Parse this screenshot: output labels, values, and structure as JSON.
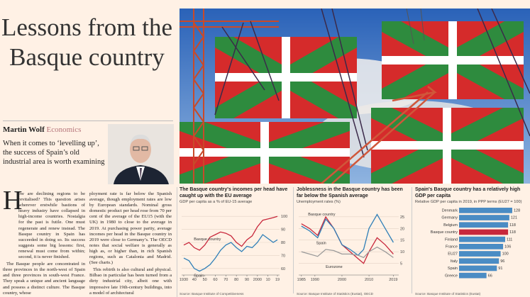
{
  "header": {
    "title": "Lessons from the Basque country",
    "author": "Martin Wolf",
    "section": "Economics",
    "deck": "When it comes to ‘levelling up’, the success of Spain’s old industrial area is worth examining"
  },
  "body": {
    "drop_cap": "H",
    "columns": [
      [
        "ow are declining regions to be revitalised? This question arises wherever erstwhile bastions of heavy industry have collapsed in high-income countries. Nostalgia for the past is futile. One must regenerate and renew instead. The Basque country in Spain has succeeded in doing so. Its success suggests some big lessons: first, renewal must come from within; second, it is never finished.",
        "The Basque people are concentrated in three provinces in the north-west of Spain and three provinces in south-west France. They speak a unique and ancient language and possess a distinct culture. The Basque country, whose"
      ],
      [
        "ployment rate is far below the Spanish average, though employment rates are low by European standards. Nominal gross domestic product per head rose from 70 per cent of the average of the EU15 (with the UK) in 1980 to close to the average in 2019. At purchasing power parity, average incomes per head in the Basque country in 2019 were close to Germany’s. The OECD notes that social welfare is generally as high as, or higher than, in rich Spanish regions, such as Catalonia and Madrid. (See charts.)",
        "This rebirth is also cultural and physical. Bilbao in particular has been turned from a dirty industrial city, albeit one with impressive late 19th-century buildings, into a model of architectural"
      ]
    ]
  },
  "charts": [
    {
      "type": "line",
      "title": "The Basque country's incomes per head have caught up with the EU average",
      "subtitle": "GDP per capita as a % of EU-15 average",
      "source": "Source: Basque Institute of Competitiveness",
      "x": [
        1930,
        1935,
        1940,
        1945,
        1950,
        1955,
        1960,
        1965,
        1970,
        1975,
        1980,
        1985,
        1990,
        1995,
        2000,
        2005,
        2010,
        2015,
        2019
      ],
      "series": [
        {
          "name": "Basque country",
          "color": "#c8283c",
          "values": [
            78,
            80,
            76,
            74,
            78,
            84,
            86,
            88,
            87,
            85,
            80,
            77,
            82,
            85,
            92,
            97,
            98,
            99,
            100
          ]
        },
        {
          "name": "Spain",
          "color": "#2f7fb8",
          "values": [
            68,
            66,
            60,
            58,
            60,
            63,
            68,
            74,
            78,
            80,
            76,
            73,
            77,
            76,
            80,
            86,
            83,
            80,
            82
          ]
        }
      ],
      "xlim": [
        1928,
        2021
      ],
      "xticks": [
        1930,
        {
          "value": 1940,
          "label": "40"
        },
        {
          "value": 1950,
          "label": "50"
        },
        {
          "value": 1960,
          "label": "60"
        },
        {
          "value": 1970,
          "label": "70"
        },
        {
          "value": 1980,
          "label": "80"
        },
        {
          "value": 1990,
          "label": "90"
        },
        2000,
        {
          "value": 2010,
          "label": "10"
        },
        {
          "value": 2019,
          "label": "19"
        }
      ],
      "ylim": [
        55,
        105
      ],
      "yticks": [
        60,
        70,
        80,
        90,
        100
      ]
    },
    {
      "type": "line",
      "title": "Joblessness in the Basque country has been far below the Spanish average",
      "subtitle": "Unemployment rates (%)",
      "source": "Source: Basque Institute of Statistics (Eustat), OECD",
      "x": [
        1985,
        1988,
        1991,
        1994,
        1997,
        2000,
        2003,
        2006,
        2008,
        2010,
        2013,
        2016,
        2019
      ],
      "series": [
        {
          "name": "Basque country",
          "color": "#c8283c",
          "values": [
            22,
            20,
            17,
            25,
            20,
            13,
            10,
            7,
            5,
            10,
            16,
            13,
            9
          ]
        },
        {
          "name": "Spain",
          "color": "#2f7fb8",
          "values": [
            21,
            19,
            16,
            24,
            20,
            13,
            11,
            8.5,
            11,
            20,
            26,
            20,
            14
          ]
        },
        {
          "name": "Eurozone",
          "color": "#9a9a9a",
          "values": [
            10,
            9,
            8,
            11,
            10.5,
            9,
            9,
            8.5,
            7.5,
            10,
            12,
            10,
            7.5
          ]
        }
      ],
      "xlim": [
        1984,
        2021
      ],
      "xticks": [
        1985,
        1990,
        2000,
        2010,
        2019
      ],
      "ylim": [
        0,
        28
      ],
      "yticks": [
        5,
        10,
        15,
        20,
        25
      ]
    },
    {
      "type": "barh",
      "title": "Spain's Basque country has a relatively high GDP per capita",
      "subtitle": "Relative GDP per capita in 2019, in PPP terms (EU27 = 100)",
      "source": "Source: Basque Institute of Statistics (Eustat)",
      "categories": [
        "Denmark",
        "Germany",
        "Belgium",
        "Basque country",
        "Finland",
        "France",
        "EU27",
        "Italy",
        "Spain",
        "Greece"
      ],
      "values": [
        128,
        121,
        118,
        118,
        111,
        106,
        100,
        96,
        91,
        66
      ],
      "colors": [
        "#4a8cc4",
        "#4a8cc4",
        "#4a8cc4",
        "#c8283c",
        "#4a8cc4",
        "#4a8cc4",
        "#4a8cc4",
        "#4a8cc4",
        "#4a8cc4",
        "#4a8cc4"
      ],
      "xlim": [
        0,
        140
      ]
    }
  ]
}
